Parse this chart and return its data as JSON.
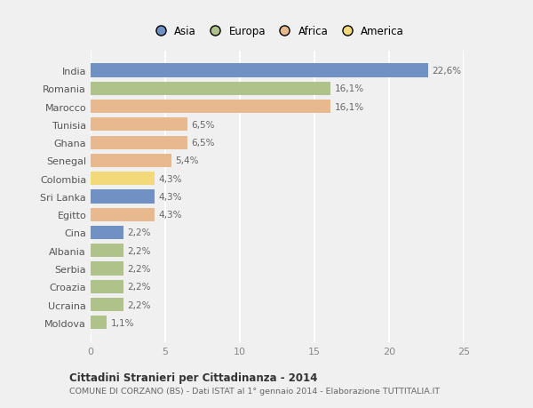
{
  "categories": [
    "India",
    "Romania",
    "Marocco",
    "Tunisia",
    "Ghana",
    "Senegal",
    "Colombia",
    "Sri Lanka",
    "Egitto",
    "Cina",
    "Albania",
    "Serbia",
    "Croazia",
    "Ucraina",
    "Moldova"
  ],
  "values": [
    22.6,
    16.1,
    16.1,
    6.5,
    6.5,
    5.4,
    4.3,
    4.3,
    4.3,
    2.2,
    2.2,
    2.2,
    2.2,
    2.2,
    1.1
  ],
  "labels": [
    "22,6%",
    "16,1%",
    "16,1%",
    "6,5%",
    "6,5%",
    "5,4%",
    "4,3%",
    "4,3%",
    "4,3%",
    "2,2%",
    "2,2%",
    "2,2%",
    "2,2%",
    "2,2%",
    "1,1%"
  ],
  "colors": [
    "#7191c4",
    "#afc28a",
    "#e8b88e",
    "#e8b88e",
    "#e8b88e",
    "#e8b88e",
    "#f2d97a",
    "#7191c4",
    "#e8b88e",
    "#7191c4",
    "#afc28a",
    "#afc28a",
    "#afc28a",
    "#afc28a",
    "#afc28a"
  ],
  "continent_colors": {
    "Asia": "#7191c4",
    "Europa": "#afc28a",
    "Africa": "#e8b88e",
    "America": "#f2d97a"
  },
  "xlim": [
    0,
    25
  ],
  "xticks": [
    0,
    5,
    10,
    15,
    20,
    25
  ],
  "title": "Cittadini Stranieri per Cittadinanza - 2014",
  "subtitle": "COMUNE DI CORZANO (BS) - Dati ISTAT al 1° gennaio 2014 - Elaborazione TUTTITALIA.IT",
  "bg_color": "#f0f0f0",
  "plot_bg_color": "#f0f0f0",
  "grid_color": "#ffffff",
  "bar_height": 0.75
}
